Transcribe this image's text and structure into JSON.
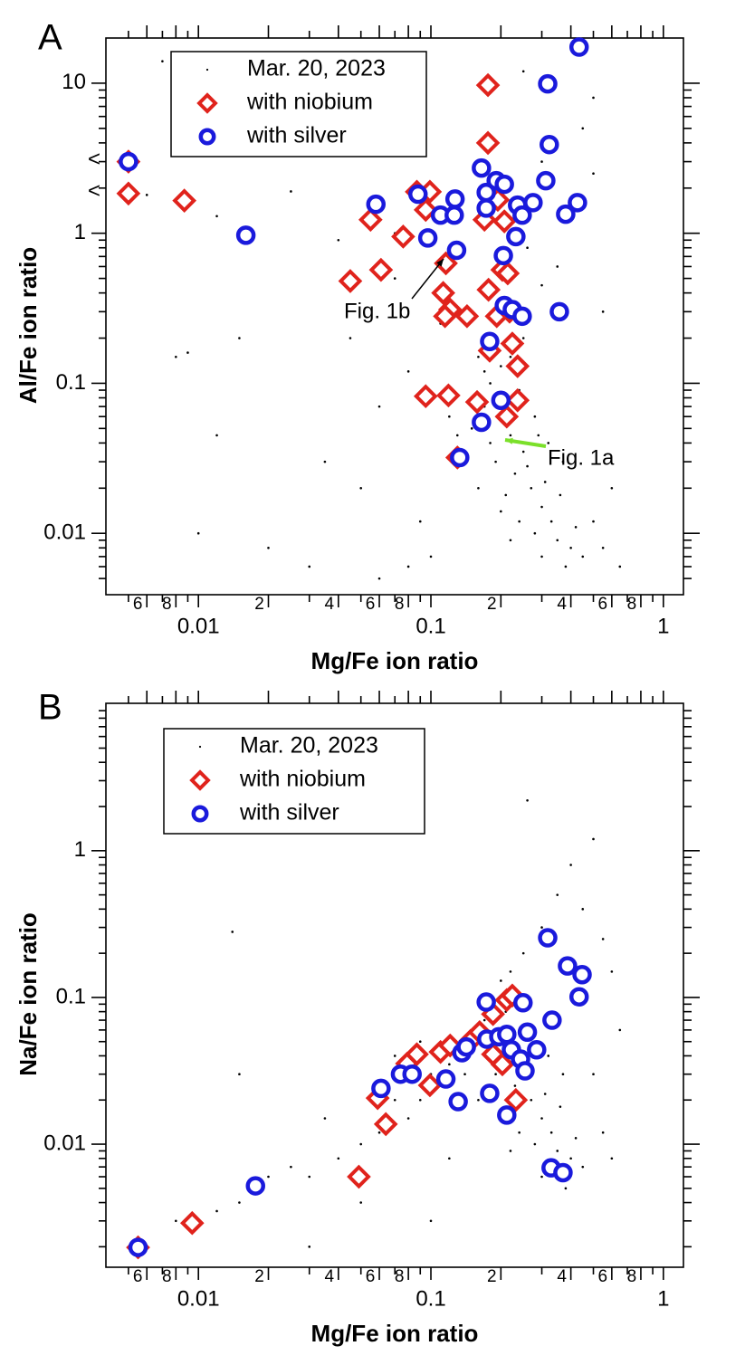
{
  "chart_data": [
    {
      "type": "scatter",
      "panel_label": "A",
      "xlabel": "Mg/Fe ion ratio",
      "ylabel": "Al/Fe ion ratio",
      "log_x": true,
      "log_y": true,
      "legend": "upper left",
      "xlim": [
        0.004,
        1.22
      ],
      "ylim": [
        0.0039,
        20
      ],
      "xticks": [
        {
          "value": 0.006,
          "label": "6"
        },
        {
          "value": 0.008,
          "label": "8"
        },
        0.01,
        {
          "value": 0.02,
          "label": "2"
        },
        {
          "value": 0.04,
          "label": "4"
        },
        {
          "value": 0.06,
          "label": "6"
        },
        {
          "value": 0.08,
          "label": "8"
        },
        0.1,
        {
          "value": 0.2,
          "label": "2"
        },
        {
          "value": 0.4,
          "label": "4"
        },
        {
          "value": 0.6,
          "label": "6"
        },
        {
          "value": 0.8,
          "label": "8"
        },
        1
      ],
      "x_minor_ticks": [
        0.005,
        0.007,
        0.009,
        0.03,
        0.05,
        0.07,
        0.09,
        0.3,
        0.5,
        0.7,
        0.9
      ],
      "yticks": [
        0.01,
        0.1,
        1,
        10
      ],
      "y_minor_ticks": [
        0.005,
        0.006,
        0.007,
        0.008,
        0.009,
        0.02,
        0.03,
        0.04,
        0.05,
        0.06,
        0.07,
        0.08,
        0.09,
        0.2,
        0.3,
        0.4,
        0.5,
        0.6,
        0.7,
        0.8,
        0.9,
        2,
        3,
        4,
        5,
        6,
        7,
        8,
        9
      ],
      "annotations": [
        "<",
        "<",
        "Fig. 1b",
        "Fig. 1a"
      ],
      "series": [
        {
          "name": "Mar. 20, 2023",
          "color": "#000000",
          "marker": "dot",
          "x": [
            0.15,
            0.18,
            0.2,
            0.22,
            0.25,
            0.17,
            0.19,
            0.23,
            0.27,
            0.3,
            0.33,
            0.28,
            0.35,
            0.4,
            0.24,
            0.21,
            0.26,
            0.31,
            0.36,
            0.42,
            0.45,
            0.38,
            0.3,
            0.22,
            0.2,
            0.16,
            0.14,
            0.13,
            0.12,
            0.18,
            0.2,
            0.22,
            0.25,
            0.19,
            0.16,
            0.24,
            0.28,
            0.32,
            0.37,
            0.29,
            0.21,
            0.17,
            0.23,
            0.2,
            0.26,
            0.3,
            0.35,
            0.4,
            0.5,
            0.45,
            0.3,
            0.25,
            0.5,
            0.55,
            0.6,
            0.5,
            0.55,
            0.65,
            0.01,
            0.008,
            0.009,
            0.006,
            0.007,
            0.012,
            0.02,
            0.03,
            0.035,
            0.045,
            0.05,
            0.06,
            0.07,
            0.08,
            0.09,
            0.1,
            0.11,
            0.04,
            0.025,
            0.015,
            0.012,
            0.07,
            0.08,
            0.06
          ],
          "values": [
            0.05,
            0.04,
            0.06,
            0.045,
            0.035,
            0.07,
            0.03,
            0.025,
            0.02,
            0.015,
            0.012,
            0.01,
            0.009,
            0.008,
            0.012,
            0.018,
            0.028,
            0.022,
            0.018,
            0.011,
            0.007,
            0.006,
            0.007,
            0.009,
            0.014,
            0.02,
            0.03,
            0.045,
            0.06,
            0.1,
            0.13,
            0.15,
            0.2,
            0.25,
            0.15,
            0.09,
            0.06,
            0.04,
            0.03,
            0.045,
            0.08,
            0.12,
            0.3,
            0.5,
            0.8,
            0.45,
            0.6,
            1.5,
            2.5,
            5,
            3,
            12,
            8,
            0.3,
            0.02,
            0.012,
            0.008,
            0.006,
            0.01,
            0.15,
            0.16,
            1.8,
            14,
            1.3,
            0.008,
            0.006,
            0.03,
            0.2,
            0.02,
            0.005,
            0.5,
            0.12,
            0.012,
            0.007,
            0.25,
            0.9,
            1.9,
            0.2,
            0.045,
            1.0,
            0.006,
            0.07
          ]
        },
        {
          "name": "with niobium",
          "color": "#e0231c",
          "marker": "diamond",
          "x": [
            0.005,
            0.005,
            0.0087,
            0.055,
            0.076,
            0.061,
            0.045,
            0.087,
            0.099,
            0.095,
            0.116,
            0.113,
            0.121,
            0.115,
            0.143,
            0.176,
            0.176,
            0.17,
            0.194,
            0.207,
            0.203,
            0.214,
            0.177,
            0.192,
            0.218,
            0.179,
            0.224,
            0.236,
            0.095,
            0.119,
            0.158,
            0.236,
            0.212,
            0.13
          ],
          "values": [
            3.0,
            1.84,
            1.65,
            1.23,
            0.95,
            0.57,
            0.48,
            1.89,
            1.89,
            1.43,
            0.63,
            0.4,
            0.31,
            0.28,
            0.28,
            9.7,
            4.0,
            1.23,
            1.67,
            1.2,
            0.57,
            0.54,
            0.42,
            0.28,
            0.3,
            0.165,
            0.184,
            0.13,
            0.082,
            0.083,
            0.075,
            0.077,
            0.06,
            0.032
          ]
        },
        {
          "name": "with silver",
          "color": "#1a1adc",
          "marker": "ring",
          "x": [
            0.005,
            0.058,
            0.016,
            0.088,
            0.097,
            0.11,
            0.127,
            0.126,
            0.129,
            0.165,
            0.173,
            0.173,
            0.191,
            0.207,
            0.205,
            0.236,
            0.232,
            0.247,
            0.275,
            0.207,
            0.224,
            0.247,
            0.179,
            0.318,
            0.323,
            0.312,
            0.427,
            0.434,
            0.38,
            0.357,
            0.2,
            0.165,
            0.133
          ],
          "values": [
            3.0,
            1.56,
            0.97,
            1.82,
            0.93,
            1.32,
            1.69,
            1.32,
            0.77,
            2.72,
            1.87,
            1.47,
            2.24,
            2.12,
            0.71,
            1.54,
            0.95,
            1.32,
            1.6,
            0.33,
            0.31,
            0.28,
            0.19,
            9.9,
            3.9,
            2.24,
            1.6,
            17.4,
            1.34,
            0.3,
            0.077,
            0.055,
            0.032
          ]
        }
      ]
    },
    {
      "type": "scatter",
      "panel_label": "B",
      "xlabel": "Mg/Fe ion ratio",
      "ylabel": "Na/Fe ion ratio",
      "log_x": true,
      "log_y": true,
      "legend": "upper left",
      "xlim": [
        0.004,
        1.22
      ],
      "ylim": [
        0.00145,
        10.1
      ],
      "xticks": [
        {
          "value": 0.006,
          "label": "6"
        },
        {
          "value": 0.008,
          "label": "8"
        },
        0.01,
        {
          "value": 0.02,
          "label": "2"
        },
        {
          "value": 0.04,
          "label": "4"
        },
        {
          "value": 0.06,
          "label": "6"
        },
        {
          "value": 0.08,
          "label": "8"
        },
        0.1,
        {
          "value": 0.2,
          "label": "2"
        },
        {
          "value": 0.4,
          "label": "4"
        },
        {
          "value": 0.6,
          "label": "6"
        },
        {
          "value": 0.8,
          "label": "8"
        },
        1
      ],
      "x_minor_ticks": [
        0.005,
        0.007,
        0.009,
        0.03,
        0.05,
        0.07,
        0.09,
        0.3,
        0.5,
        0.7,
        0.9
      ],
      "yticks": [
        0.01,
        0.1,
        1
      ],
      "y_minor_ticks": [
        0.002,
        0.003,
        0.004,
        0.005,
        0.006,
        0.007,
        0.008,
        0.009,
        0.02,
        0.03,
        0.04,
        0.05,
        0.06,
        0.07,
        0.08,
        0.09,
        0.2,
        0.3,
        0.4,
        0.5,
        0.6,
        0.7,
        0.8,
        0.9,
        2,
        3,
        4,
        5,
        6,
        7,
        8,
        9
      ],
      "series": [
        {
          "name": "Mar. 20, 2023",
          "color": "#000000",
          "marker": "dot",
          "x": [
            0.15,
            0.18,
            0.2,
            0.22,
            0.25,
            0.17,
            0.19,
            0.23,
            0.27,
            0.3,
            0.33,
            0.28,
            0.35,
            0.4,
            0.24,
            0.21,
            0.26,
            0.31,
            0.36,
            0.42,
            0.45,
            0.38,
            0.3,
            0.22,
            0.16,
            0.14,
            0.13,
            0.12,
            0.18,
            0.2,
            0.22,
            0.25,
            0.24,
            0.28,
            0.32,
            0.37,
            0.29,
            0.21,
            0.3,
            0.35,
            0.4,
            0.45,
            0.5,
            0.55,
            0.6,
            0.65,
            0.5,
            0.55,
            0.6,
            0.26,
            0.1,
            0.09,
            0.08,
            0.07,
            0.06,
            0.05,
            0.04,
            0.035,
            0.03,
            0.025,
            0.02,
            0.015,
            0.012,
            0.01,
            0.008,
            0.015,
            0.014,
            0.03,
            0.1,
            0.05,
            0.12,
            0.09,
            0.07
          ],
          "values": [
            0.05,
            0.04,
            0.06,
            0.045,
            0.035,
            0.07,
            0.03,
            0.025,
            0.02,
            0.015,
            0.012,
            0.01,
            0.009,
            0.008,
            0.012,
            0.018,
            0.028,
            0.022,
            0.018,
            0.011,
            0.007,
            0.005,
            0.006,
            0.009,
            0.02,
            0.03,
            0.045,
            0.035,
            0.1,
            0.13,
            0.15,
            0.2,
            0.09,
            0.06,
            0.04,
            0.03,
            0.045,
            0.08,
            0.3,
            0.5,
            0.8,
            0.4,
            1.2,
            0.25,
            0.15,
            0.06,
            0.03,
            0.012,
            0.008,
            2.2,
            0.03,
            0.02,
            0.015,
            0.02,
            0.012,
            0.01,
            0.008,
            0.015,
            0.006,
            0.007,
            0.006,
            0.004,
            0.0035,
            0.003,
            0.003,
            0.03,
            0.28,
            0.002,
            0.003,
            0.004,
            0.008,
            0.05,
            0.04
          ]
        },
        {
          "name": "with niobium",
          "color": "#e0231c",
          "marker": "diamond",
          "x": [
            0.0055,
            0.0094,
            0.049,
            0.064,
            0.059,
            0.079,
            0.087,
            0.099,
            0.11,
            0.121,
            0.148,
            0.162,
            0.185,
            0.212,
            0.224,
            0.185,
            0.232,
            0.203
          ],
          "values": [
            0.00198,
            0.0029,
            0.006,
            0.0137,
            0.0206,
            0.0354,
            0.041,
            0.0252,
            0.0425,
            0.047,
            0.0506,
            0.058,
            0.077,
            0.096,
            0.103,
            0.041,
            0.02,
            0.035
          ]
        },
        {
          "name": "with silver",
          "color": "#1a1adc",
          "marker": "ring",
          "x": [
            0.0055,
            0.0176,
            0.061,
            0.074,
            0.083,
            0.116,
            0.131,
            0.136,
            0.142,
            0.173,
            0.179,
            0.174,
            0.196,
            0.212,
            0.212,
            0.222,
            0.243,
            0.254,
            0.249,
            0.26,
            0.285,
            0.332,
            0.318,
            0.387,
            0.447,
            0.434,
            0.329,
            0.37
          ],
          "values": [
            0.00198,
            0.0052,
            0.024,
            0.03,
            0.03,
            0.0278,
            0.0195,
            0.042,
            0.046,
            0.093,
            0.0222,
            0.052,
            0.054,
            0.056,
            0.0158,
            0.044,
            0.038,
            0.0316,
            0.092,
            0.058,
            0.044,
            0.07,
            0.255,
            0.164,
            0.143,
            0.101,
            0.0069,
            0.0064
          ]
        }
      ]
    }
  ]
}
